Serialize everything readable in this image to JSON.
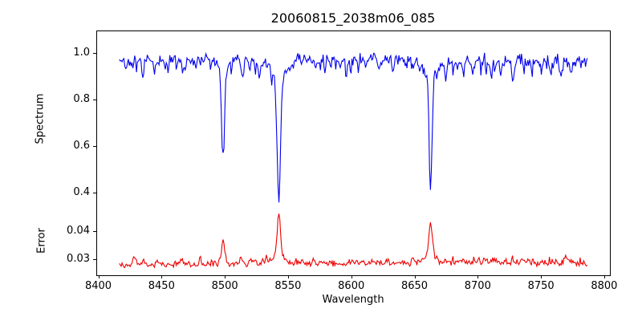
{
  "title": "20060815_2038m06_085",
  "chart_data": {
    "type": "line",
    "title": "20060815_2038m06_085",
    "xlabel": "Wavelength",
    "xlim": [
      8398.4,
      8804.5
    ],
    "xticks": [
      8400,
      8450,
      8500,
      8550,
      8600,
      8650,
      8700,
      8750,
      8800
    ],
    "x_data_range": [
      8416,
      8786
    ],
    "n_points": 520,
    "seed": 42,
    "grid": false,
    "legend": "none",
    "panels": [
      {
        "name": "spectrum",
        "ylabel": "Spectrum",
        "line_color": "#0000ee",
        "ylim": [
          0.338,
          1.0946
        ],
        "yticks": [
          {
            "v": 1.0,
            "label": "1.0"
          },
          {
            "v": 0.8,
            "label": "0.8"
          },
          {
            "v": 0.6,
            "label": "0.6"
          },
          {
            "v": 0.4,
            "label": "0.4"
          }
        ],
        "model": {
          "continuum_points": [
            [
              8416,
              0.971
            ],
            [
              8560,
              0.976
            ],
            [
              8700,
              0.968
            ],
            [
              8786,
              0.963
            ]
          ],
          "noise_amp": 0.03,
          "noise_boost_after": 8690,
          "noise_boost_factor": 1.3,
          "spike_prob": 0.07,
          "spike_min": 0.015,
          "spike_extra": 0.045,
          "clamp_max": 1.055,
          "absorption_lines": [
            [
              8498.02,
              0.37,
              1.1
            ],
            [
              8498.02,
              0.055,
              3.5
            ],
            [
              8542.09,
              0.52,
              1.3
            ],
            [
              8542.09,
              0.095,
              5.5
            ],
            [
              8662.14,
              0.465,
              1.1
            ],
            [
              8662.14,
              0.085,
              4.5
            ],
            [
              8426,
              0.03,
              0.8
            ],
            [
              8434.5,
              0.075,
              0.9
            ],
            [
              8444,
              0.058,
              0.9
            ],
            [
              8452,
              0.032,
              0.8
            ],
            [
              8462,
              0.035,
              0.9
            ],
            [
              8467,
              0.048,
              1.0
            ],
            [
              8477,
              0.025,
              0.8
            ],
            [
              8488,
              0.042,
              0.8
            ],
            [
              8513,
              0.072,
              1.0
            ],
            [
              8519,
              0.048,
              0.8
            ],
            [
              8527,
              0.038,
              1.4
            ],
            [
              8536,
              0.03,
              0.7
            ],
            [
              8560,
              0.028,
              0.8
            ],
            [
              8568,
              0.025,
              0.8
            ],
            [
              8575,
              0.035,
              0.9
            ],
            [
              8583,
              0.03,
              1.0
            ],
            [
              8590,
              0.025,
              0.8
            ],
            [
              8598,
              0.03,
              0.8
            ],
            [
              8611,
              0.028,
              0.8
            ],
            [
              8621,
              0.035,
              0.9
            ],
            [
              8632,
              0.03,
              0.8
            ],
            [
              8642,
              0.025,
              0.8
            ],
            [
              8648,
              0.045,
              0.9
            ],
            [
              8674,
              0.08,
              1.0
            ],
            [
              8680,
              0.04,
              0.8
            ],
            [
              8688,
              0.055,
              0.9
            ],
            [
              8696,
              0.035,
              0.8
            ],
            [
              8702,
              0.04,
              0.8
            ],
            [
              8710,
              0.068,
              1.0
            ],
            [
              8718,
              0.04,
              0.8
            ],
            [
              8727,
              0.078,
              1.0
            ],
            [
              8736,
              0.045,
              0.8
            ],
            [
              8742,
              0.05,
              0.9
            ],
            [
              8750,
              0.035,
              0.8
            ],
            [
              8757,
              0.045,
              0.9
            ],
            [
              8765,
              0.035,
              0.8
            ],
            [
              8773,
              0.04,
              0.9
            ]
          ]
        }
      },
      {
        "name": "error",
        "ylabel": "Error",
        "line_color": "#ee0000",
        "ylim": [
          0.0243,
          0.0486
        ],
        "yticks": [
          {
            "v": 0.04,
            "label": "0.04"
          },
          {
            "v": 0.03,
            "label": "0.03"
          }
        ],
        "model": {
          "baseline_points": [
            [
              8416,
              0.0278
            ],
            [
              8600,
              0.0284
            ],
            [
              8786,
              0.0287
            ]
          ],
          "noise_amp": 0.0013,
          "noise_boost_after": 8700,
          "noise_boost_factor": 1.5,
          "spike_prob": 0.05,
          "spike_min": 0.0006,
          "spike_extra": 0.0012,
          "clamp_max": 0.0482,
          "emission_peaks": [
            [
              8498.02,
              0.0085,
              1.2
            ],
            [
              8542.09,
              0.016,
              1.3
            ],
            [
              8542.09,
              0.0025,
              5.0
            ],
            [
              8662.14,
              0.0125,
              1.4
            ],
            [
              8662.14,
              0.002,
              5.0
            ],
            [
              8428,
              0.0028,
              1.2
            ],
            [
              8435,
              0.0016,
              1.0
            ],
            [
              8448,
              0.001,
              1.0
            ],
            [
              8465,
              0.0022,
              1.5
            ],
            [
              8480,
              0.0012,
              1.0
            ],
            [
              8513,
              0.0018,
              1.2
            ],
            [
              8521,
              0.0014,
              1.0
            ],
            [
              8530,
              0.001,
              1.5
            ],
            [
              8556,
              0.0008,
              1.0
            ],
            [
              8575,
              0.001,
              1.2
            ],
            [
              8600,
              0.0008,
              1.5
            ],
            [
              8620,
              0.0008,
              1.2
            ],
            [
              8648,
              0.001,
              1.0
            ],
            [
              8674,
              0.0012,
              1.0
            ],
            [
              8688,
              0.0012,
              1.2
            ],
            [
              8700,
              0.001,
              1.0
            ],
            [
              8713,
              0.0013,
              1.5
            ],
            [
              8727,
              0.0012,
              1.0
            ],
            [
              8740,
              0.0015,
              1.5
            ],
            [
              8756,
              0.0013,
              1.0
            ],
            [
              8770,
              0.002,
              1.5
            ]
          ]
        }
      }
    ]
  }
}
